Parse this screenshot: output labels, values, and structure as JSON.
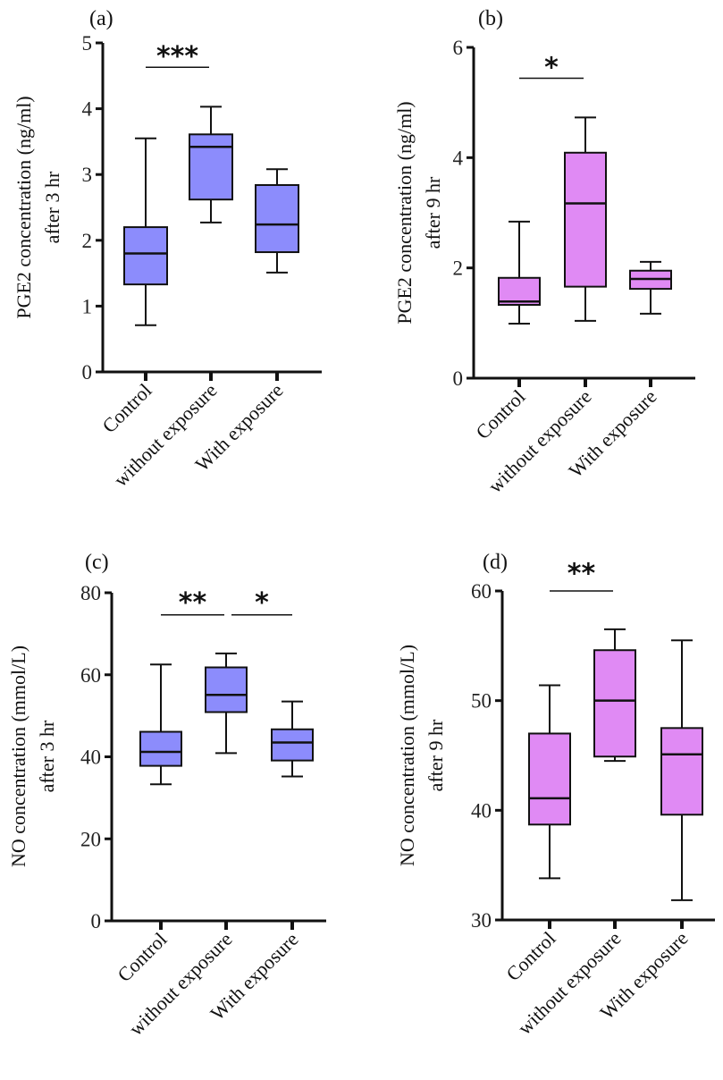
{
  "colors": {
    "blue": "#8c8cfc",
    "pink": "#e08af4",
    "stroke": "#111111"
  },
  "chart_data": [
    {
      "type": "box",
      "panel_label": "(a)",
      "ylabel_line1": "PGE2 concentration (ng/ml)",
      "ylabel_line2": "after 3 hr",
      "ylim": [
        0,
        5
      ],
      "yticks": [
        0,
        1,
        2,
        3,
        4,
        5
      ],
      "fill": "blue",
      "categories": [
        "Control",
        "without exposure",
        "With exposure"
      ],
      "boxes": [
        {
          "min": 0.71,
          "q1": 1.33,
          "median": 1.8,
          "q3": 2.2,
          "max": 3.55
        },
        {
          "min": 2.27,
          "q1": 2.62,
          "median": 3.42,
          "q3": 3.61,
          "max": 4.03
        },
        {
          "min": 1.51,
          "q1": 1.82,
          "median": 2.24,
          "q3": 2.84,
          "max": 3.08
        }
      ],
      "significance": [
        {
          "from": 0,
          "to": 1,
          "label": "***",
          "y": 4.63,
          "label_y": 4.85
        }
      ]
    },
    {
      "type": "box",
      "panel_label": "(b)",
      "ylabel_line1": "PGE2 concentration (ng/ml)",
      "ylabel_line2": "after 9 hr",
      "ylim": [
        0,
        6
      ],
      "yticks": [
        0,
        2,
        4,
        6
      ],
      "fill": "pink",
      "categories": [
        "Control",
        "without exposure",
        "With exposure"
      ],
      "boxes": [
        {
          "min": 0.99,
          "q1": 1.33,
          "median": 1.39,
          "q3": 1.82,
          "max": 2.84
        },
        {
          "min": 1.04,
          "q1": 1.66,
          "median": 3.17,
          "q3": 4.09,
          "max": 4.73
        },
        {
          "min": 1.17,
          "q1": 1.62,
          "median": 1.8,
          "q3": 1.95,
          "max": 2.11
        }
      ],
      "significance": [
        {
          "from": 0,
          "to": 1,
          "label": "*",
          "y": 5.44,
          "label_y": 5.7
        }
      ]
    },
    {
      "type": "box",
      "panel_label": "(c)",
      "ylabel_line1": "NO concentration (mmol/L)",
      "ylabel_line2": "after 3 hr",
      "ylim": [
        0,
        80
      ],
      "yticks": [
        0,
        20,
        40,
        60,
        80
      ],
      "fill": "blue",
      "categories": [
        "Control",
        "without exposure",
        "With exposure"
      ],
      "boxes": [
        {
          "min": 33.3,
          "q1": 37.8,
          "median": 41.2,
          "q3": 46.1,
          "max": 62.5
        },
        {
          "min": 40.9,
          "q1": 50.9,
          "median": 55.1,
          "q3": 61.8,
          "max": 65.2
        },
        {
          "min": 35.2,
          "q1": 39.1,
          "median": 43.5,
          "q3": 46.7,
          "max": 53.5
        }
      ],
      "significance": [
        {
          "from": 0,
          "to": 1,
          "label": "**",
          "y": 74.6,
          "label_y": 78.5
        },
        {
          "from": 1,
          "to": 2,
          "label": "*",
          "y": 74.6,
          "label_y": 78.5
        }
      ]
    },
    {
      "type": "box",
      "panel_label": "(d)",
      "ylabel_line1": "NO concentration (mmol/L)",
      "ylabel_line2": "after 9 hr",
      "ylim": [
        30,
        60
      ],
      "yticks": [
        30,
        40,
        50,
        60
      ],
      "fill": "pink",
      "categories": [
        "Control",
        "without exposure",
        "With exposure"
      ],
      "boxes": [
        {
          "min": 33.8,
          "q1": 38.7,
          "median": 41.1,
          "q3": 47.0,
          "max": 51.4
        },
        {
          "min": 44.5,
          "q1": 44.9,
          "median": 50.0,
          "q3": 54.6,
          "max": 56.5
        },
        {
          "min": 31.8,
          "q1": 39.6,
          "median": 45.1,
          "q3": 47.5,
          "max": 55.5
        }
      ],
      "significance": [
        {
          "from": 0,
          "to": 1,
          "label": "**",
          "y": 60,
          "label_y": 61.9
        }
      ]
    }
  ]
}
